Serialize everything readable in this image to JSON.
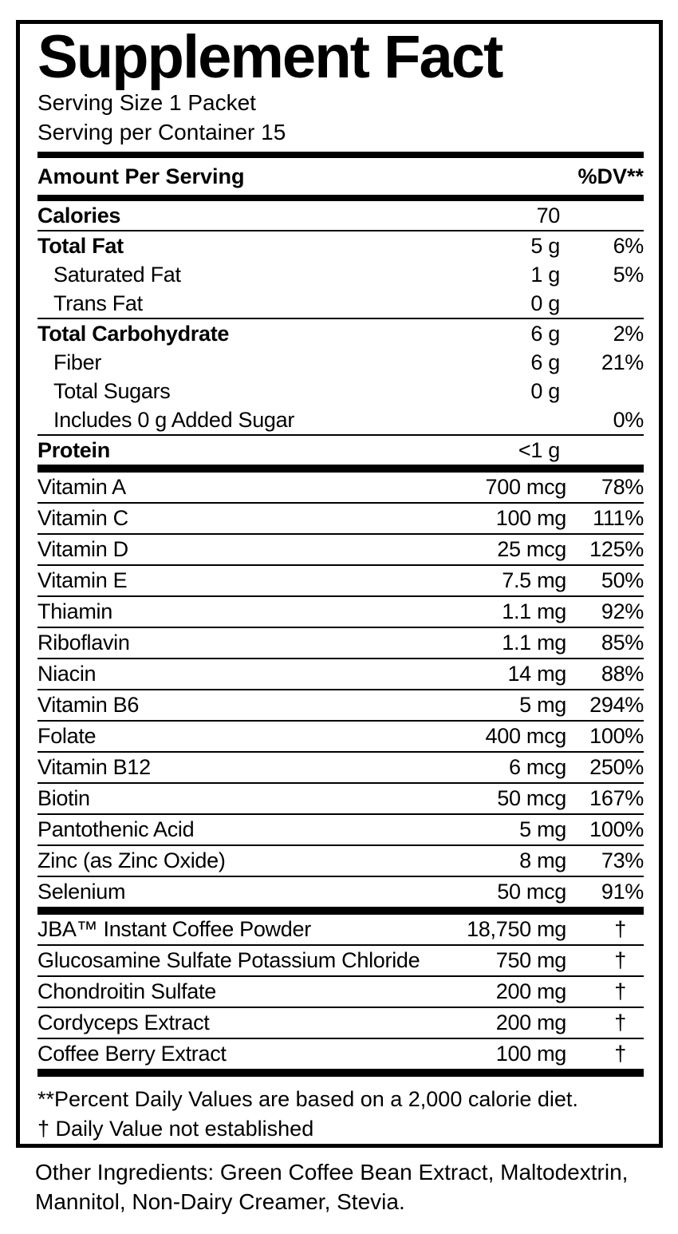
{
  "panel": {
    "title": "Supplement Fact",
    "serving_size": "Serving Size 1 Packet",
    "servings_per_container": "Serving per Container 15",
    "header": {
      "amount_label": "Amount Per Serving",
      "dv_label": "%DV**"
    },
    "macro_groups": [
      [
        {
          "label": "Calories",
          "amount": "70",
          "dv": "",
          "bold": true,
          "indent": false
        }
      ],
      [
        {
          "label": "Total Fat",
          "amount": "5 g",
          "dv": "6%",
          "bold": true,
          "indent": false
        },
        {
          "label": "Saturated Fat",
          "amount": "1 g",
          "dv": "5%",
          "bold": false,
          "indent": true
        },
        {
          "label": "Trans Fat",
          "amount": "0 g",
          "dv": "",
          "bold": false,
          "indent": true
        }
      ],
      [
        {
          "label": "Total Carbohydrate",
          "amount": "6 g",
          "dv": "2%",
          "bold": true,
          "indent": false
        },
        {
          "label": "Fiber",
          "amount": "6 g",
          "dv": "21%",
          "bold": false,
          "indent": true
        },
        {
          "label": "Total Sugars",
          "amount": "0 g",
          "dv": "",
          "bold": false,
          "indent": true
        },
        {
          "label": "Includes 0 g Added Sugar",
          "amount": "",
          "dv": "0%",
          "bold": false,
          "indent": true
        }
      ],
      [
        {
          "label": "Protein",
          "amount": "<1 g",
          "dv": "",
          "bold": true,
          "indent": false
        }
      ]
    ],
    "vitamin_rows": [
      {
        "label": "Vitamin A",
        "amount": "700 mcg",
        "dv": "78%"
      },
      {
        "label": "Vitamin C",
        "amount": "100 mg",
        "dv": "111%"
      },
      {
        "label": "Vitamin D",
        "amount": "25 mcg",
        "dv": "125%"
      },
      {
        "label": "Vitamin E",
        "amount": "7.5 mg",
        "dv": "50%"
      },
      {
        "label": "Thiamin",
        "amount": "1.1 mg",
        "dv": "92%"
      },
      {
        "label": "Riboflavin",
        "amount": "1.1 mg",
        "dv": "85%"
      },
      {
        "label": "Niacin",
        "amount": "14 mg",
        "dv": "88%"
      },
      {
        "label": "Vitamin B6",
        "amount": "5 mg",
        "dv": "294%"
      },
      {
        "label": "Folate",
        "amount": "400 mcg",
        "dv": "100%"
      },
      {
        "label": "Vitamin B12",
        "amount": "6 mcg",
        "dv": "250%"
      },
      {
        "label": "Biotin",
        "amount": "50 mcg",
        "dv": "167%"
      },
      {
        "label": "Pantothenic Acid",
        "amount": "5 mg",
        "dv": "100%"
      },
      {
        "label": "Zinc (as Zinc Oxide)",
        "amount": "8 mg",
        "dv": "73%"
      },
      {
        "label": "Selenium",
        "amount": "50 mcg",
        "dv": "91%"
      }
    ],
    "blend_rows": [
      {
        "label": "JBA™ Instant Coffee Powder",
        "amount": "18,750 mg",
        "dv": "†"
      },
      {
        "label": "Glucosamine Sulfate Potassium Chloride",
        "amount": "750 mg",
        "dv": "†"
      },
      {
        "label": "Chondroitin Sulfate",
        "amount": "200 mg",
        "dv": "†"
      },
      {
        "label": "Cordyceps Extract",
        "amount": "200 mg",
        "dv": "†"
      },
      {
        "label": "Coffee Berry Extract",
        "amount": "100 mg",
        "dv": "†"
      }
    ],
    "footnotes": {
      "dv_note": "**Percent Daily Values are based on a 2,000 calorie diet.",
      "dagger_note": "† Daily Value not established"
    },
    "colors": {
      "ink": "#000000",
      "paper": "#ffffff"
    }
  },
  "other_ingredients": "Other Ingredients:  Green Coffee Bean Extract, Maltodextrin, Mannitol, Non-Dairy Creamer, Stevia."
}
